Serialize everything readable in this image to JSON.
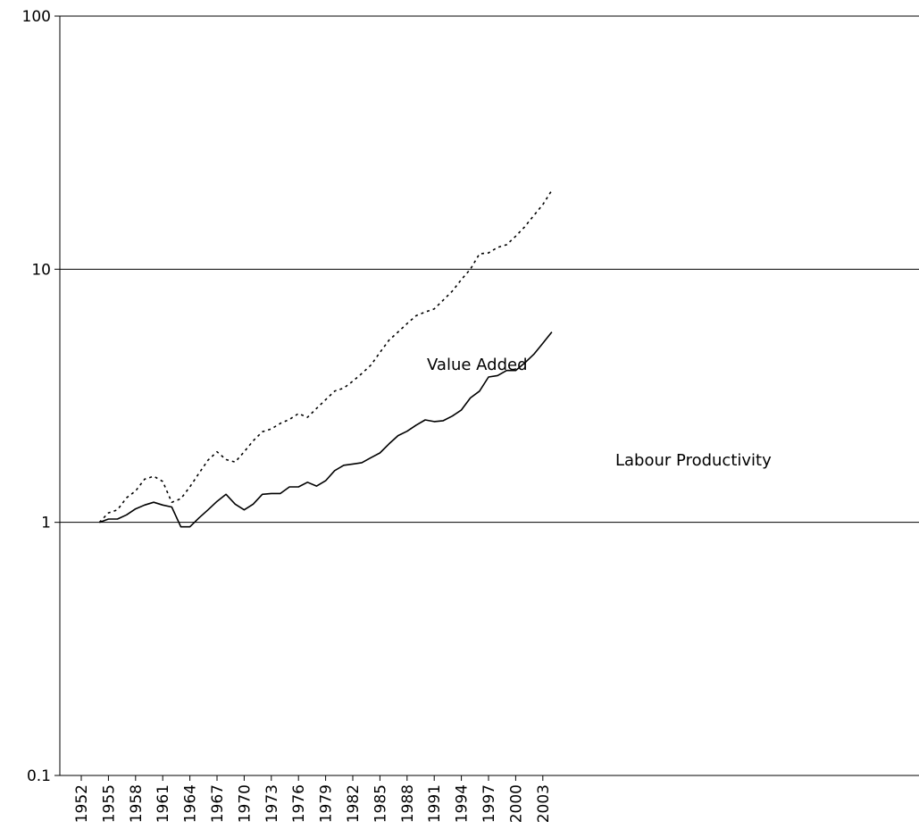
{
  "chart_data": {
    "type": "line",
    "title": "",
    "xlabel": "",
    "ylabel": "",
    "y_scale": "log",
    "ylim": [
      0.1,
      100
    ],
    "y_ticks": [
      "0.1",
      "1",
      "10",
      "100"
    ],
    "x_ticks": [
      "1952",
      "1955",
      "1958",
      "1961",
      "1964",
      "1967",
      "1970",
      "1973",
      "1976",
      "1979",
      "1982",
      "1985",
      "1988",
      "1991",
      "1994",
      "1997",
      "2000",
      "2003"
    ],
    "grid": "horizontal",
    "legend": "none",
    "colors": {
      "line": "#000000",
      "grid": "#000000"
    },
    "x": [
      1954,
      1955,
      1956,
      1957,
      1958,
      1959,
      1960,
      1961,
      1962,
      1963,
      1964,
      1965,
      1966,
      1967,
      1968,
      1969,
      1970,
      1971,
      1972,
      1973,
      1974,
      1975,
      1976,
      1977,
      1978,
      1979,
      1980,
      1981,
      1982,
      1983,
      1984,
      1985,
      1986,
      1987,
      1988,
      1989,
      1990,
      1991,
      1992,
      1993,
      1994,
      1995,
      1996,
      1997,
      1998,
      1999,
      2000,
      2001,
      2002,
      2003,
      2004
    ],
    "series": [
      {
        "name": "Value Added",
        "style": "dotted",
        "values": [
          1.0,
          1.09,
          1.12,
          1.25,
          1.33,
          1.48,
          1.52,
          1.45,
          1.2,
          1.24,
          1.38,
          1.56,
          1.76,
          1.9,
          1.77,
          1.73,
          1.9,
          2.1,
          2.28,
          2.34,
          2.46,
          2.55,
          2.69,
          2.6,
          2.82,
          3.05,
          3.3,
          3.39,
          3.61,
          3.87,
          4.18,
          4.69,
          5.24,
          5.65,
          6.1,
          6.55,
          6.78,
          6.97,
          7.55,
          8.2,
          9.1,
          10.0,
          11.5,
          11.6,
          12.2,
          12.5,
          13.5,
          14.7,
          16.3,
          18.0,
          20.5
        ]
      },
      {
        "name": "Labour Productivity",
        "style": "solid",
        "values": [
          1.0,
          1.03,
          1.03,
          1.07,
          1.13,
          1.17,
          1.2,
          1.17,
          1.15,
          0.96,
          0.96,
          1.04,
          1.12,
          1.21,
          1.29,
          1.18,
          1.12,
          1.18,
          1.29,
          1.3,
          1.3,
          1.38,
          1.38,
          1.44,
          1.39,
          1.46,
          1.6,
          1.68,
          1.7,
          1.72,
          1.8,
          1.88,
          2.04,
          2.2,
          2.29,
          2.42,
          2.54,
          2.5,
          2.52,
          2.63,
          2.78,
          3.1,
          3.3,
          3.75,
          3.8,
          3.98,
          3.98,
          4.26,
          4.61,
          5.1,
          5.65
        ]
      }
    ],
    "annotations": [
      {
        "text": "Value Added",
        "series": "Value Added"
      },
      {
        "text": "Labour Productivity",
        "series": "Labour Productivity"
      }
    ]
  }
}
